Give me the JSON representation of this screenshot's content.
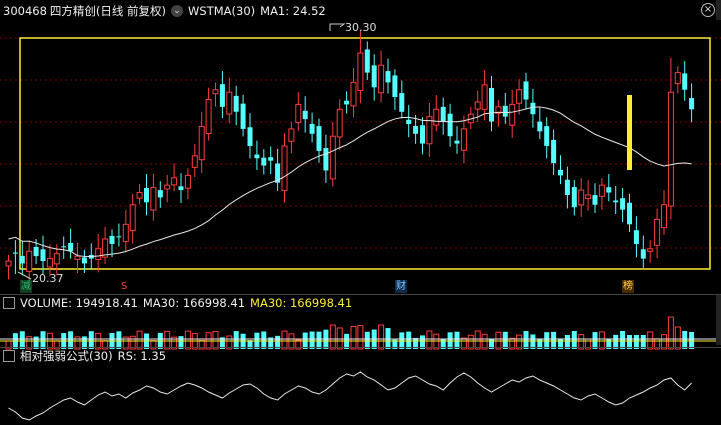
{
  "header": {
    "code": "300468",
    "name": "四方精创",
    "period": "(日线 前复权)",
    "indicator": "WSTMA(30)",
    "ma1_label": "MA1: 24.52"
  },
  "price_panel": {
    "high_label": "30.30",
    "low_label": "20.37",
    "markers": [
      {
        "text": "减",
        "color": "#2fb36a",
        "bg": "#104020"
      },
      {
        "text": "S",
        "color": "#ff3b3b",
        "bg": "#000"
      },
      {
        "text": "财",
        "color": "#7fc4ff",
        "bg": "#0f2a48"
      },
      {
        "text": "榜",
        "color": "#ffd24a",
        "bg": "#4a2a00"
      }
    ]
  },
  "volume_panel": {
    "title": "VOLUME: 194918.41",
    "ma_white": "MA30: 166998.41",
    "ma_yellow": "MA30: 166998.41"
  },
  "rs_panel": {
    "title": "相对强弱公式(30)",
    "value": "RS: 1.35"
  },
  "colors": {
    "up": "#ff3b3b",
    "down": "#54ffff",
    "ma": "#e8e8e8",
    "box": "#ffee33",
    "grid": "#7a0000"
  }
}
